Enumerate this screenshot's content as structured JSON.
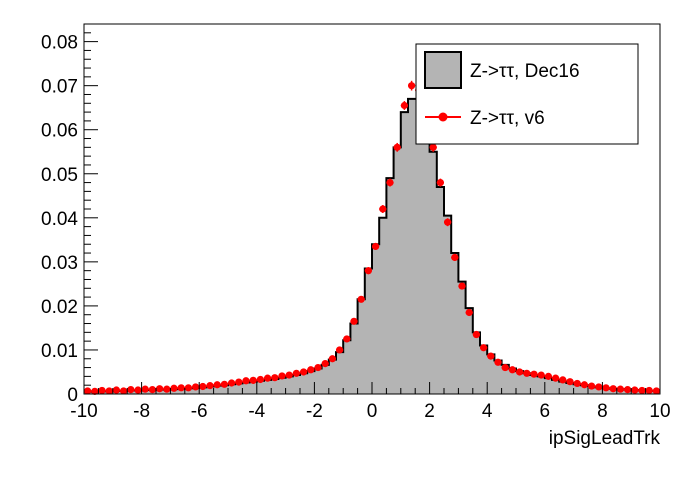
{
  "chart_data": {
    "type": "histogram",
    "xlabel": "ipSigLeadTrk",
    "ylabel": "",
    "xlim": [
      -10,
      10
    ],
    "ylim": [
      0,
      0.084
    ],
    "x_ticks": [
      "-10",
      "-8",
      "-6",
      "-4",
      "-2",
      "0",
      "2",
      "4",
      "6",
      "8",
      "10"
    ],
    "y_ticks": [
      "0",
      "0.01",
      "0.02",
      "0.03",
      "0.04",
      "0.05",
      "0.06",
      "0.07",
      "0.08"
    ],
    "grid": false,
    "legend_position": "top-right",
    "bin_edges_range": [
      -10,
      10
    ],
    "bin_count": 80,
    "series": [
      {
        "name": "Z->ττ, Dec16",
        "style": "filled-step",
        "fill_color": "#b4b4b4",
        "line_color": "#000000",
        "values": [
          0.0005,
          0.0006,
          0.0006,
          0.0006,
          0.0007,
          0.0007,
          0.0008,
          0.0008,
          0.0009,
          0.0009,
          0.001,
          0.001,
          0.0011,
          0.0012,
          0.0013,
          0.0014,
          0.0015,
          0.0017,
          0.0019,
          0.002,
          0.0022,
          0.0024,
          0.0026,
          0.0028,
          0.003,
          0.0032,
          0.0034,
          0.0037,
          0.004,
          0.0043,
          0.0047,
          0.0052,
          0.0058,
          0.0066,
          0.0078,
          0.0095,
          0.0122,
          0.016,
          0.0215,
          0.0285,
          0.034,
          0.04,
          0.049,
          0.056,
          0.064,
          0.067,
          0.067,
          0.062,
          0.055,
          0.047,
          0.0405,
          0.032,
          0.0255,
          0.0195,
          0.014,
          0.011,
          0.009,
          0.0076,
          0.0066,
          0.0058,
          0.0052,
          0.0047,
          0.0043,
          0.004,
          0.0036,
          0.0032,
          0.0028,
          0.0025,
          0.0022,
          0.002,
          0.0017,
          0.0015,
          0.0013,
          0.0012,
          0.0011,
          0.001,
          0.0009,
          0.0008,
          0.0007,
          0.0007
        ]
      },
      {
        "name": "Z->ττ, v6",
        "style": "markers-errorbars",
        "marker_color": "#ff0000",
        "values": [
          0.0007,
          0.0006,
          0.0008,
          0.0007,
          0.0009,
          0.0007,
          0.001,
          0.0009,
          0.0011,
          0.001,
          0.0012,
          0.0011,
          0.0013,
          0.0014,
          0.0014,
          0.0016,
          0.0017,
          0.0019,
          0.0021,
          0.0022,
          0.0025,
          0.0027,
          0.003,
          0.0031,
          0.0033,
          0.0036,
          0.0037,
          0.0041,
          0.0043,
          0.0047,
          0.005,
          0.0055,
          0.006,
          0.0069,
          0.008,
          0.01,
          0.0125,
          0.0165,
          0.0215,
          0.028,
          0.0335,
          0.042,
          0.048,
          0.056,
          0.0655,
          0.07,
          0.069,
          0.064,
          0.056,
          0.048,
          0.039,
          0.031,
          0.0245,
          0.0185,
          0.0135,
          0.0105,
          0.0086,
          0.0072,
          0.006,
          0.0055,
          0.005,
          0.0047,
          0.0045,
          0.0043,
          0.004,
          0.0036,
          0.0032,
          0.0028,
          0.0024,
          0.0021,
          0.0018,
          0.0016,
          0.0014,
          0.0012,
          0.0011,
          0.001,
          0.0009,
          0.0008,
          0.0008,
          0.0007
        ],
        "errors": [
          0.0002,
          0.0002,
          0.0002,
          0.0002,
          0.0002,
          0.0002,
          0.0002,
          0.0002,
          0.0002,
          0.0002,
          0.0002,
          0.0002,
          0.0002,
          0.0002,
          0.0002,
          0.0002,
          0.0003,
          0.0003,
          0.0003,
          0.0003,
          0.0003,
          0.0003,
          0.0003,
          0.0003,
          0.0003,
          0.0003,
          0.0003,
          0.0003,
          0.0003,
          0.0004,
          0.0004,
          0.0004,
          0.0004,
          0.0004,
          0.0004,
          0.0005,
          0.0005,
          0.0006,
          0.0007,
          0.0008,
          0.0008,
          0.0009,
          0.0009,
          0.001,
          0.001,
          0.0011,
          0.0011,
          0.001,
          0.001,
          0.0009,
          0.0009,
          0.0008,
          0.0007,
          0.0006,
          0.0005,
          0.0005,
          0.0004,
          0.0004,
          0.0004,
          0.0004,
          0.0004,
          0.0003,
          0.0003,
          0.0003,
          0.0003,
          0.0003,
          0.0003,
          0.0003,
          0.0003,
          0.0003,
          0.0002,
          0.0002,
          0.0002,
          0.0002,
          0.0002,
          0.0002,
          0.0002,
          0.0002,
          0.0002,
          0.0002
        ]
      }
    ]
  }
}
